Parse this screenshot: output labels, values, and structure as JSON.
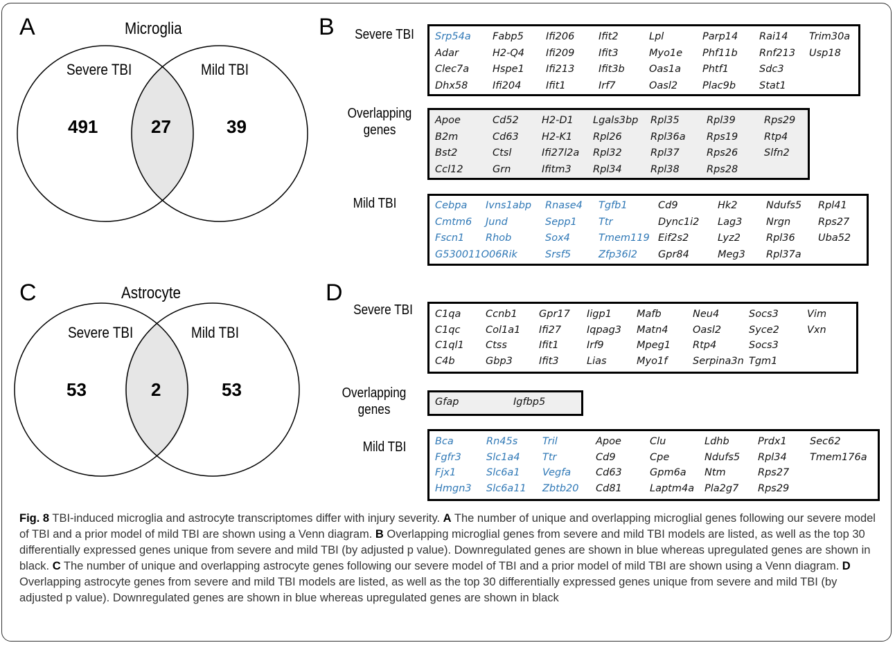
{
  "panel_a": {
    "letter": "A",
    "title": "Microglia",
    "left_label": "Severe TBI",
    "right_label": "Mild TBI",
    "left_count": "491",
    "overlap_count": "27",
    "right_count": "39"
  },
  "panel_b": {
    "letter": "B",
    "severe_label": "Severe TBI",
    "overlap_label": "Overlapping genes",
    "mild_label": "Mild TBI",
    "severe_genes": [
      [
        "Srp54a",
        "Fabp5",
        "Ifi206",
        "Ifit2",
        "Lpl",
        "Parp14",
        "Rai14",
        "Trim30a"
      ],
      [
        "Adar",
        "H2-Q4",
        "Ifi209",
        "Ifit3",
        "Myo1e",
        "Phf11b",
        "Rnf213",
        "Usp18"
      ],
      [
        "Clec7a",
        "Hspe1",
        "Ifi213",
        "Ifit3b",
        "Oas1a",
        "Phtf1",
        "Sdc3"
      ],
      [
        "Dhx58",
        "Ifi204",
        "Ifit1",
        "Irf7",
        "Oasl2",
        "Plac9b",
        "Stat1"
      ]
    ],
    "overlap_genes": [
      [
        "Apoe",
        "Cd52",
        "H2-D1",
        "Lgals3bp",
        "Rpl35",
        "Rpl39",
        "Rps29"
      ],
      [
        "B2m",
        "Cd63",
        "H2-K1",
        "Rpl26",
        "Rpl36a",
        "Rps19",
        "Rtp4"
      ],
      [
        "Bst2",
        "Ctsl",
        "Ifi27l2a",
        "Rpl32",
        "Rpl37",
        "Rps26",
        "Slfn2"
      ],
      [
        "Ccl12",
        "Grn",
        "Ifitm3",
        "Rpl34",
        "Rpl38",
        "Rps28"
      ]
    ],
    "mild_genes": [
      [
        "Cebpa",
        "Ivns1abp",
        "Rnase4",
        "Tgfb1",
        "Cd9",
        "Hk2",
        "Ndufs5",
        "Rpl41"
      ],
      [
        "Cmtm6",
        "Jund",
        "Sepp1",
        "Ttr",
        "Dync1i2",
        "Lag3",
        "Nrgn",
        "Rps27"
      ],
      [
        "Fscn1",
        "Rhob",
        "Sox4",
        "Tmem119",
        "Eif2s2",
        "Lyz2",
        "Rpl36",
        "Uba52"
      ],
      [
        "G530011O06Rik",
        "Srsf5",
        "Zfp36l2",
        "Gpr84",
        "Meg3",
        "Rpl37a"
      ]
    ]
  },
  "panel_c": {
    "letter": "C",
    "title": "Astrocyte",
    "left_label": "Severe TBI",
    "right_label": "Mild TBI",
    "left_count": "53",
    "overlap_count": "2",
    "right_count": "53"
  },
  "panel_d": {
    "letter": "D",
    "severe_label": "Severe TBI",
    "overlap_label": "Overlapping genes",
    "mild_label": "Mild TBI",
    "severe_genes": [
      [
        "C1qa",
        "Ccnb1",
        "Gpr17",
        "Iigp1",
        "Mafb",
        "Neu4",
        "Socs3",
        "Vim"
      ],
      [
        "C1qc",
        "Col1a1",
        "Ifi27",
        "Iqpag3",
        "Matn4",
        "Oasl2",
        "Syce2",
        "Vxn"
      ],
      [
        "C1ql1",
        "Ctss",
        "Ifit1",
        "Irf9",
        "Mpeg1",
        "Rtp4",
        "Socs3"
      ],
      [
        "C4b",
        "Gbp3",
        "Ifit3",
        "Lias",
        "Myo1f",
        "Serpina3n",
        "Tgm1"
      ]
    ],
    "overlap_genes": [
      [
        "Gfap",
        "Igfbp5"
      ]
    ],
    "mild_genes": [
      [
        "Bca",
        "Rn45s",
        "Tril",
        "Apoe",
        "Clu",
        "Ldhb",
        "Prdx1",
        "Sec62"
      ],
      [
        "Fgfr3",
        "Slc1a4",
        "Ttr",
        "Cd9",
        "Cpe",
        "Ndufs5",
        "Rpl34",
        "Tmem176a"
      ],
      [
        "Fjx1",
        "Slc6a1",
        "Vegfa",
        "Cd63",
        "Gpm6a",
        "Ntm",
        "Rps27"
      ],
      [
        "Hmgn3",
        "Slc6a11",
        "Zbtb20",
        "Cd81",
        "Laptm4a",
        "Pla2g7",
        "Rps29"
      ]
    ]
  },
  "colors": {
    "downregulated": "#2f78b6",
    "upregulated": "#111111",
    "overlap_fill": "#e6e6e6"
  },
  "caption": {
    "fig_label": "Fig. 8",
    "part1": " TBI-induced microglia and astrocyte transcriptomes differ with injury severity. ",
    "ref_a": "A",
    "part2": " The number of unique and overlapping microglial genes following our severe model of TBI and a prior model of mild TBI are shown using a Venn diagram. ",
    "ref_b": "B",
    "part3": " Overlapping microglial genes from severe and mild TBI models are listed, as well as the top 30 differentially expressed genes unique from severe and mild TBI (by adjusted p value). Downregulated genes are shown in blue whereas upregulated genes are shown in black. ",
    "ref_c": "C",
    "part4": " The number of unique and overlapping astrocyte genes following our severe model of TBI and a prior model of mild TBI are shown using a Venn diagram. ",
    "ref_d": "D",
    "part5": " Overlapping astrocyte genes from severe and mild TBI models are listed, as well as the top 30 differentially expressed genes unique from severe and mild TBI (by adjusted p value). Downregulated genes are shown in blue whereas upregulated genes are shown in black"
  }
}
